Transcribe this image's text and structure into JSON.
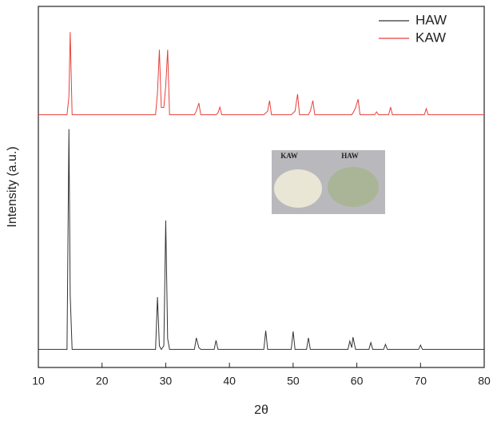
{
  "chart_data": {
    "type": "line",
    "x_label": "2θ",
    "y_label": "Intensity (a.u.)",
    "x": [
      10,
      14.5,
      14.8,
      15.0,
      15.3,
      28.4,
      28.7,
      29.0,
      29.3,
      29.7,
      30.0,
      30.3,
      30.6,
      34.5,
      34.8,
      35.2,
      35.5,
      37.6,
      37.9,
      38.2,
      38.5,
      38.8,
      45.4,
      45.7,
      46.0,
      46.3,
      46.6,
      49.7,
      50.0,
      50.3,
      50.7,
      51.0,
      52.1,
      52.4,
      52.7,
      53.1,
      53.4,
      58.6,
      58.9,
      59.2,
      59.4,
      59.8,
      60.2,
      60.5,
      61.9,
      62.2,
      62.5,
      62.8,
      63.1,
      63.4,
      64.2,
      64.5,
      64.8,
      65.0,
      65.3,
      65.6,
      69.7,
      70.0,
      70.3,
      70.6,
      70.9,
      71.2,
      80
    ],
    "series": [
      {
        "name": "HAW",
        "color": "#333333",
        "values": [
          5,
          5,
          66,
          20,
          5,
          5,
          19.5,
          6,
          5,
          6,
          40.7,
          8,
          5,
          5,
          8.2,
          5.5,
          5,
          5,
          7.5,
          5,
          5,
          5,
          5,
          10.2,
          5,
          5,
          5,
          5,
          10,
          5,
          5,
          5,
          5,
          8.2,
          5,
          5,
          5,
          5,
          7.3,
          5.5,
          8.4,
          5,
          5,
          5,
          5,
          6.9,
          5,
          5,
          5,
          5,
          5,
          6.4,
          5,
          5,
          5,
          5,
          5,
          6.2,
          5,
          5,
          5,
          5,
          5
        ]
      },
      {
        "name": "KAW",
        "color": "#e8403a",
        "values": [
          70,
          70,
          75,
          92.9,
          70,
          70,
          76,
          88,
          72,
          72,
          78,
          88,
          70,
          70,
          71,
          73.2,
          70,
          70,
          70,
          70.5,
          72.1,
          70,
          70,
          70.5,
          71,
          73.9,
          70,
          70,
          70.5,
          71,
          75.7,
          70,
          70,
          70,
          71,
          73.9,
          70,
          70,
          70,
          70,
          70.5,
          71.9,
          74.3,
          70,
          70,
          70,
          70,
          70,
          70.8,
          70,
          70,
          70,
          70,
          70,
          72.1,
          70,
          70,
          70,
          70,
          70,
          71.7,
          70,
          70
        ]
      }
    ],
    "xlim": [
      10,
      80
    ],
    "xticks": [
      10,
      20,
      30,
      40,
      50,
      60,
      70,
      80
    ],
    "ylim": [
      0,
      100
    ],
    "legend": "upper right",
    "inset_labels": [
      "KAW",
      "HAW"
    ]
  }
}
